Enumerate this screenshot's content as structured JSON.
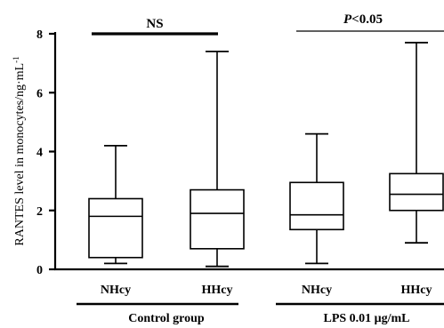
{
  "chart_data": {
    "type": "box",
    "ylabel": "RANTES level in monocytes/ng·mL",
    "ylabel_sup": "-1",
    "ylim": [
      0,
      8
    ],
    "yticks": [
      "0",
      "2",
      "4",
      "6",
      "8"
    ],
    "categories": [
      "NHcy",
      "HHcy",
      "NHcy",
      "HHcy"
    ],
    "boxes": [
      {
        "category": "NHcy",
        "min": 0.2,
        "q1": 0.4,
        "median": 1.8,
        "q3": 2.4,
        "max": 4.2
      },
      {
        "category": "HHcy",
        "min": 0.1,
        "q1": 0.7,
        "median": 1.9,
        "q3": 2.7,
        "max": 7.4
      },
      {
        "category": "NHcy",
        "min": 0.2,
        "q1": 1.35,
        "median": 1.85,
        "q3": 2.95,
        "max": 4.6
      },
      {
        "category": "HHcy",
        "min": 0.9,
        "q1": 2.0,
        "median": 2.55,
        "q3": 3.25,
        "max": 7.7
      }
    ],
    "groups": [
      {
        "label": "Control group",
        "members": [
          0,
          1
        ]
      },
      {
        "label": "LPS 0.01 μg/mL",
        "members": [
          2,
          3
        ]
      }
    ],
    "comparisons": [
      {
        "label": "NS",
        "members": [
          0,
          1
        ]
      },
      {
        "label": "P<0.05",
        "members": [
          2,
          3
        ]
      }
    ],
    "grid": false
  }
}
